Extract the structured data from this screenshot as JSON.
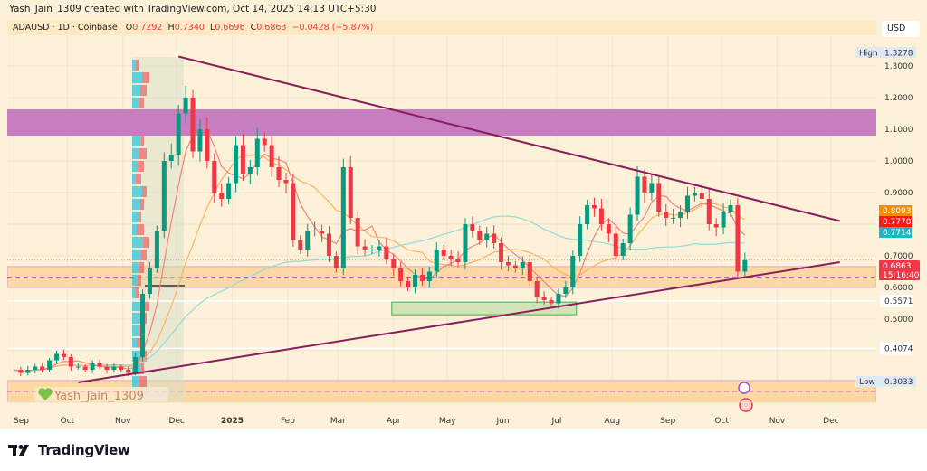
{
  "header": {
    "credit": "Yash_Jain_1309 created with TradingView.com, Oct 14, 2025 14:13 UTC+5:30",
    "symbol": "ADAUSD · 1D · Coinbase",
    "o_label": "O",
    "o": "0.7292",
    "h_label": "H",
    "h": "0.7340",
    "l_label": "L",
    "l": "0.6696",
    "c_label": "C",
    "c": "0.6863",
    "change": "−0.0428 (−5.87%)",
    "currency": "USD"
  },
  "footer": {
    "brand": "TradingView"
  },
  "watermark": "Yash_Jain_1309",
  "colors": {
    "background": "#fdf1d9",
    "up": "#089981",
    "down": "#f23645",
    "trendline": "#8a1e5c",
    "resistance_zone": "#c77dbf",
    "support_band": "#fcd9a4",
    "demand_box": "#d2e4b6",
    "ma_fast": "#f5837a",
    "ma_mid": "#ffb25e",
    "ma_slow": "#8fdcdc"
  },
  "chart_data": {
    "type": "candlestick",
    "title": "ADAUSD · 1D · Coinbase",
    "ylim": [
      0.237,
      1.43
    ],
    "grid": true,
    "y_ticks": [
      "1.3000",
      "1.2000",
      "1.1000",
      "1.0000",
      "0.9000",
      "0.7000",
      "0.6000",
      "0.5000"
    ],
    "x_ticks": [
      "Sep",
      "Oct",
      "Nov",
      "Dec",
      "2025",
      "Feb",
      "Mar",
      "Apr",
      "May",
      "Jun",
      "Jul",
      "Aug",
      "Sep",
      "Oct",
      "Nov",
      "Dec"
    ],
    "x_range": [
      "2024-09-01",
      "2025-12-31"
    ],
    "closes": [
      0.34,
      0.33,
      0.34,
      0.35,
      0.34,
      0.37,
      0.39,
      0.38,
      0.35,
      0.35,
      0.34,
      0.36,
      0.35,
      0.34,
      0.35,
      0.34,
      0.33,
      0.38,
      0.58,
      0.66,
      0.78,
      1.0,
      1.02,
      1.15,
      1.2,
      1.03,
      1.1,
      1.0,
      0.9,
      0.88,
      0.93,
      1.05,
      0.96,
      0.98,
      1.07,
      1.05,
      0.98,
      0.94,
      0.93,
      0.75,
      0.72,
      0.78,
      0.78,
      0.77,
      0.7,
      0.66,
      0.98,
      0.82,
      0.73,
      0.72,
      0.72,
      0.73,
      0.69,
      0.66,
      0.62,
      0.6,
      0.64,
      0.62,
      0.65,
      0.72,
      0.7,
      0.69,
      0.68,
      0.8,
      0.78,
      0.75,
      0.77,
      0.74,
      0.68,
      0.67,
      0.66,
      0.68,
      0.62,
      0.57,
      0.56,
      0.55,
      0.58,
      0.6,
      0.7,
      0.8,
      0.86,
      0.85,
      0.8,
      0.77,
      0.7,
      0.74,
      0.83,
      0.95,
      0.9,
      0.93,
      0.84,
      0.82,
      0.82,
      0.84,
      0.89,
      0.9,
      0.88,
      0.8,
      0.79,
      0.84,
      0.86,
      0.65,
      0.6863
    ],
    "series_high": "1.3278",
    "series_low": "0.3033",
    "high_label": "High",
    "low_label": "Low",
    "price_labels": [
      {
        "value": "0.8093",
        "color": "#ff8a00"
      },
      {
        "value": "0.7778",
        "color": "#ff1717"
      },
      {
        "value": "0.7714",
        "color": "#22b5c8"
      }
    ],
    "last_price": "0.6863",
    "countdown": "15:16:40",
    "horizontal_levels": [
      "0.5571",
      "0.4074"
    ],
    "resistance_zone": [
      1.08,
      1.163
    ],
    "support_bands": [
      [
        0.6,
        0.666
      ],
      [
        0.237,
        0.306
      ]
    ],
    "demand_box": {
      "from": "2025-03-31",
      "to": "2025-07-12",
      "range": [
        0.514,
        0.554
      ]
    },
    "trendlines": [
      {
        "from": [
          "2024-12-02",
          1.33
        ],
        "to": [
          "2025-12-06",
          0.81
        ]
      },
      {
        "from": [
          "2024-10-07",
          0.3
        ],
        "to": [
          "2025-12-06",
          0.68
        ]
      }
    ]
  }
}
